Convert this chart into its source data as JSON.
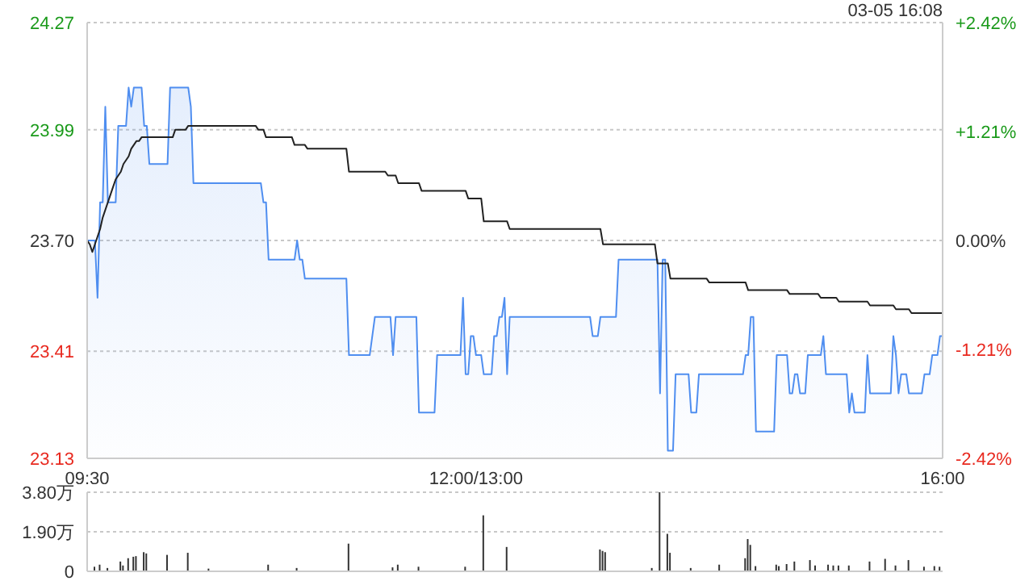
{
  "chart_data": [
    {
      "type": "area",
      "annotations": [
        "03-05 16:08"
      ],
      "grid": "y",
      "categories": [
        "09:30",
        null,
        null,
        null,
        null,
        null,
        null,
        null,
        null,
        null,
        null,
        null,
        null,
        null,
        null,
        null,
        null,
        null,
        null,
        null,
        null,
        null,
        null,
        null,
        null,
        null,
        null,
        null,
        null,
        null,
        null,
        null,
        null,
        null,
        null,
        null,
        null,
        null,
        null,
        null,
        null,
        null,
        null,
        null,
        null,
        null,
        null,
        null,
        null,
        null,
        null,
        null,
        null,
        null,
        null,
        null,
        null,
        null,
        null,
        null,
        null,
        null,
        null,
        null,
        null,
        null,
        null,
        null,
        null,
        null,
        null,
        null,
        null,
        null,
        null,
        null,
        null,
        null,
        null,
        null,
        null,
        null,
        null,
        null,
        null,
        null,
        null,
        null,
        null,
        null,
        null,
        null,
        null,
        null,
        null,
        null,
        null,
        null,
        null,
        null,
        null,
        null,
        null,
        null,
        null,
        null,
        null,
        null,
        null,
        null,
        null,
        null,
        null,
        null,
        null,
        null,
        null,
        null,
        null,
        null,
        null,
        null,
        null,
        null,
        null,
        null,
        null,
        null,
        null,
        null,
        null,
        null,
        null,
        null,
        null,
        null,
        null,
        null,
        null,
        null,
        null,
        null,
        null,
        null,
        null,
        null,
        null,
        null,
        null,
        null,
        "12:00/13:00",
        null,
        null,
        null,
        null,
        null,
        null,
        null,
        null,
        null,
        null,
        null,
        null,
        null,
        null,
        null,
        null,
        null,
        null,
        null,
        null,
        null,
        null,
        null,
        null,
        null,
        null,
        null,
        null,
        null,
        null,
        null,
        null,
        null,
        null,
        null,
        null,
        null,
        null,
        null,
        null,
        null,
        null,
        null,
        null,
        null,
        null,
        null,
        null,
        null,
        null,
        null,
        null,
        null,
        null,
        null,
        null,
        null,
        null,
        null,
        null,
        null,
        null,
        null,
        null,
        null,
        null,
        null,
        null,
        null,
        null,
        null,
        null,
        null,
        null,
        null,
        null,
        null,
        null,
        null,
        null,
        null,
        null,
        null,
        null,
        null,
        null,
        null,
        null,
        null,
        null,
        null,
        null,
        null,
        null,
        null,
        null,
        null,
        null,
        null,
        null,
        null,
        null,
        null,
        null,
        null,
        null,
        null,
        null,
        null,
        null,
        null,
        null,
        null,
        null,
        null,
        null,
        null,
        null,
        null,
        null,
        null,
        null,
        null,
        null,
        null,
        null,
        null,
        null,
        null,
        null,
        null,
        null,
        null,
        null,
        null,
        null,
        null,
        null,
        null,
        null,
        null,
        null,
        null,
        null,
        null,
        null,
        null,
        null,
        null,
        null,
        null,
        null,
        null,
        null,
        null,
        null,
        null,
        null,
        null,
        null,
        null,
        null,
        null,
        null,
        null,
        null,
        null,
        null,
        null,
        null,
        null,
        null,
        null,
        null,
        null,
        null,
        null,
        null,
        null,
        "16:00"
      ],
      "ylim": [
        23.13,
        24.27
      ],
      "yticks": [
        23.13,
        23.41,
        {
          "value": 23.7,
          "label": "23.70"
        },
        23.99,
        24.27
      ],
      "y2lim": [
        -2.42,
        2.42
      ],
      "y2ticks": [
        {
          "value": -2.42,
          "label": "-2.42%"
        },
        {
          "value": -1.21,
          "label": "-1.21%"
        },
        {
          "value": 0,
          "label": "0.00%"
        },
        {
          "value": 1.21,
          "label": "+1.21%"
        },
        {
          "value": 2.42,
          "label": "+2.42%"
        }
      ],
      "series": [
        {
          "color": "#4f8ef0",
          "values": [
            23.7,
            23.7,
            23.7,
            23.7,
            23.55,
            23.8,
            23.8,
            24.05,
            23.8,
            23.8,
            23.8,
            23.8,
            24.0,
            24.0,
            24.0,
            24.0,
            24.1,
            24.05,
            24.1,
            24.1,
            24.1,
            24.1,
            24.0,
            24.0,
            23.9,
            23.9,
            23.9,
            23.9,
            23.9,
            23.9,
            23.9,
            23.9,
            24.1,
            24.1,
            24.1,
            24.1,
            24.1,
            24.1,
            24.1,
            24.1,
            24.05,
            23.85,
            23.85,
            23.85,
            23.85,
            23.85,
            23.85,
            23.85,
            23.85,
            23.85,
            23.85,
            23.85,
            23.85,
            23.85,
            23.85,
            23.85,
            23.85,
            23.85,
            23.85,
            23.85,
            23.85,
            23.85,
            23.85,
            23.85,
            23.85,
            23.85,
            23.85,
            23.85,
            23.8,
            23.8,
            23.65,
            23.65,
            23.65,
            23.65,
            23.65,
            23.65,
            23.65,
            23.65,
            23.65,
            23.65,
            23.65,
            23.7,
            23.65,
            23.65,
            23.6,
            23.6,
            23.6,
            23.6,
            23.6,
            23.6,
            23.6,
            23.6,
            23.6,
            23.6,
            23.6,
            23.6,
            23.6,
            23.6,
            23.6,
            23.6,
            23.6,
            23.4,
            23.4,
            23.4,
            23.4,
            23.4,
            23.4,
            23.4,
            23.4,
            23.4,
            23.45,
            23.5,
            23.5,
            23.5,
            23.5,
            23.5,
            23.5,
            23.5,
            23.4,
            23.5,
            23.5,
            23.5,
            23.5,
            23.5,
            23.5,
            23.5,
            23.5,
            23.5,
            23.25,
            23.25,
            23.25,
            23.25,
            23.25,
            23.25,
            23.25,
            23.4,
            23.4,
            23.4,
            23.4,
            23.4,
            23.4,
            23.4,
            23.4,
            23.4,
            23.4,
            23.55,
            23.35,
            23.35,
            23.45,
            23.45,
            23.4,
            23.4,
            23.4,
            23.35,
            23.35,
            23.35,
            23.35,
            23.45,
            23.45,
            23.5,
            23.5,
            23.55,
            23.35,
            23.5,
            23.5,
            23.5,
            23.5,
            23.5,
            23.5,
            23.5,
            23.5,
            23.5,
            23.5,
            23.5,
            23.5,
            23.5,
            23.5,
            23.5,
            23.5,
            23.5,
            23.5,
            23.5,
            23.5,
            23.5,
            23.5,
            23.5,
            23.5,
            23.5,
            23.5,
            23.5,
            23.5,
            23.5,
            23.5,
            23.5,
            23.5,
            23.45,
            23.45,
            23.45,
            23.5,
            23.5,
            23.5,
            23.5,
            23.5,
            23.5,
            23.5,
            23.65,
            23.65,
            23.65,
            23.65,
            23.65,
            23.65,
            23.65,
            23.65,
            23.65,
            23.65,
            23.65,
            23.65,
            23.65,
            23.65,
            23.65,
            23.65,
            23.3,
            23.65,
            23.65,
            23.15,
            23.15,
            23.15,
            23.35,
            23.35,
            23.35,
            23.35,
            23.35,
            23.35,
            23.25,
            23.25,
            23.25,
            23.35,
            23.35,
            23.35,
            23.35,
            23.35,
            23.35,
            23.35,
            23.35,
            23.35,
            23.35,
            23.35,
            23.35,
            23.35,
            23.35,
            23.35,
            23.35,
            23.35,
            23.35,
            23.4,
            23.4,
            23.5,
            23.5,
            23.2,
            23.2,
            23.2,
            23.2,
            23.2,
            23.2,
            23.2,
            23.2,
            23.4,
            23.4,
            23.4,
            23.4,
            23.4,
            23.3,
            23.3,
            23.35,
            23.35,
            23.3,
            23.3,
            23.3,
            23.4,
            23.4,
            23.4,
            23.4,
            23.4,
            23.4,
            23.45,
            23.35,
            23.35,
            23.35,
            23.35,
            23.35,
            23.35,
            23.35,
            23.35,
            23.35,
            23.25,
            23.3,
            23.25,
            23.25,
            23.25,
            23.25,
            23.25,
            23.4,
            23.3,
            23.3,
            23.3,
            23.3,
            23.3,
            23.3,
            23.3,
            23.3,
            23.3,
            23.45,
            23.4,
            23.3,
            23.35,
            23.35,
            23.35,
            23.3,
            23.3,
            23.3,
            23.3,
            23.3,
            23.3,
            23.35,
            23.35,
            23.35,
            23.4,
            23.4,
            23.4,
            23.45,
            23.45
          ]
        },
        {
          "type": "line",
          "color": "#222222",
          "values": [
            23.7,
            23.69,
            23.67,
            23.69,
            23.71,
            23.73,
            23.76,
            23.78,
            23.8,
            23.82,
            23.84,
            23.86,
            23.87,
            23.88,
            23.9,
            23.91,
            23.92,
            23.94,
            23.95,
            23.96,
            23.96,
            23.97,
            23.97,
            23.97,
            23.97,
            23.97,
            23.97,
            23.97,
            23.97,
            23.97,
            23.97,
            23.97,
            23.97,
            23.97,
            23.99,
            23.99,
            23.99,
            23.99,
            23.99,
            24.0,
            24.0,
            24.0,
            24.0,
            24.0,
            24.0,
            24.0,
            24.0,
            24.0,
            24.0,
            24.0,
            24.0,
            24.0,
            24.0,
            24.0,
            24.0,
            24.0,
            24.0,
            24.0,
            24.0,
            24.0,
            24.0,
            24.0,
            24.0,
            24.0,
            24.0,
            24.0,
            23.99,
            23.99,
            23.99,
            23.97,
            23.97,
            23.97,
            23.97,
            23.97,
            23.97,
            23.97,
            23.97,
            23.97,
            23.97,
            23.97,
            23.95,
            23.95,
            23.95,
            23.95,
            23.95,
            23.94,
            23.94,
            23.94,
            23.94,
            23.94,
            23.94,
            23.94,
            23.94,
            23.94,
            23.94,
            23.94,
            23.94,
            23.94,
            23.94,
            23.94,
            23.94,
            23.88,
            23.88,
            23.88,
            23.88,
            23.88,
            23.88,
            23.88,
            23.88,
            23.88,
            23.88,
            23.88,
            23.88,
            23.88,
            23.88,
            23.88,
            23.87,
            23.87,
            23.87,
            23.87,
            23.85,
            23.85,
            23.85,
            23.85,
            23.85,
            23.85,
            23.85,
            23.85,
            23.85,
            23.83,
            23.83,
            23.83,
            23.83,
            23.83,
            23.83,
            23.83,
            23.83,
            23.83,
            23.83,
            23.83,
            23.83,
            23.83,
            23.83,
            23.83,
            23.83,
            23.83,
            23.83,
            23.81,
            23.81,
            23.81,
            23.81,
            23.81,
            23.81,
            23.75,
            23.75,
            23.75,
            23.75,
            23.75,
            23.75,
            23.75,
            23.75,
            23.75,
            23.75,
            23.73,
            23.73,
            23.73,
            23.73,
            23.73,
            23.73,
            23.73,
            23.73,
            23.73,
            23.73,
            23.73,
            23.73,
            23.73,
            23.73,
            23.73,
            23.73,
            23.73,
            23.73,
            23.73,
            23.73,
            23.73,
            23.73,
            23.73,
            23.73,
            23.73,
            23.73,
            23.73,
            23.73,
            23.73,
            23.73,
            23.73,
            23.73,
            23.73,
            23.73,
            23.73,
            23.73,
            23.69,
            23.69,
            23.69,
            23.69,
            23.69,
            23.69,
            23.69,
            23.69,
            23.69,
            23.69,
            23.69,
            23.69,
            23.69,
            23.69,
            23.69,
            23.69,
            23.69,
            23.69,
            23.69,
            23.69,
            23.69,
            23.64,
            23.64,
            23.64,
            23.64,
            23.64,
            23.6,
            23.6,
            23.6,
            23.6,
            23.6,
            23.6,
            23.6,
            23.6,
            23.6,
            23.6,
            23.6,
            23.6,
            23.6,
            23.6,
            23.6,
            23.59,
            23.59,
            23.59,
            23.59,
            23.59,
            23.59,
            23.59,
            23.59,
            23.59,
            23.59,
            23.59,
            23.59,
            23.59,
            23.59,
            23.59,
            23.57,
            23.57,
            23.57,
            23.57,
            23.57,
            23.57,
            23.57,
            23.57,
            23.57,
            23.57,
            23.57,
            23.57,
            23.57,
            23.57,
            23.57,
            23.57,
            23.56,
            23.56,
            23.56,
            23.56,
            23.56,
            23.56,
            23.56,
            23.56,
            23.56,
            23.56,
            23.56,
            23.56,
            23.55,
            23.55,
            23.55,
            23.55,
            23.55,
            23.55,
            23.55,
            23.54,
            23.54,
            23.54,
            23.54,
            23.54,
            23.54,
            23.54,
            23.54,
            23.54,
            23.54,
            23.54,
            23.54,
            23.53,
            23.53,
            23.53,
            23.53,
            23.53,
            23.53,
            23.53,
            23.53,
            23.53,
            23.53,
            23.52,
            23.52,
            23.52,
            23.52,
            23.52,
            23.52,
            23.51,
            23.51,
            23.51,
            23.51,
            23.51,
            23.51,
            23.51,
            23.51,
            23.51,
            23.51,
            23.51,
            23.51,
            23.51
          ]
        }
      ]
    },
    {
      "type": "bar",
      "grid": "y",
      "tick_labels": "y",
      "color": "#333333",
      "categories": [
        null,
        null,
        null,
        null,
        null,
        null,
        null,
        null,
        null,
        null,
        null,
        null,
        null,
        null,
        null,
        null,
        null,
        null,
        null,
        null,
        null,
        null,
        null,
        null,
        null,
        null,
        null,
        null,
        null,
        null,
        null,
        null,
        null,
        null,
        null,
        null,
        null,
        null,
        null,
        null,
        null,
        null,
        null,
        null,
        null,
        null,
        null,
        null,
        null,
        null,
        null,
        null,
        null,
        null,
        null,
        null,
        null,
        null,
        null,
        null,
        null,
        null,
        null,
        null,
        null,
        null,
        null,
        null,
        null,
        null,
        null,
        null,
        null,
        null,
        null,
        null,
        null,
        null,
        null,
        null,
        null,
        null,
        null,
        null,
        null,
        null,
        null,
        null,
        null,
        null,
        null,
        null,
        null,
        null,
        null,
        null,
        null,
        null,
        null,
        null,
        null,
        null,
        null,
        null,
        null,
        null,
        null,
        null,
        null,
        null,
        null,
        null,
        null,
        null,
        null,
        null,
        null,
        null,
        null,
        null,
        null,
        null,
        null,
        null,
        null,
        null,
        null,
        null,
        null,
        null,
        null,
        null,
        null,
        null,
        null,
        null,
        null,
        null,
        null,
        null,
        null,
        null,
        null,
        null,
        null,
        null,
        null,
        null,
        null,
        null,
        null,
        null,
        null,
        null,
        null,
        null,
        null,
        null,
        null,
        null,
        null,
        null,
        null,
        null,
        null,
        null,
        null,
        null,
        null,
        null,
        null,
        null,
        null,
        null,
        null,
        null,
        null,
        null,
        null,
        null,
        null,
        null,
        null,
        null,
        null,
        null,
        null,
        null,
        null,
        null,
        null,
        null,
        null,
        null,
        null,
        null,
        null,
        null,
        null,
        null,
        null,
        null,
        null,
        null,
        null,
        null,
        null,
        null,
        null,
        null,
        null,
        null,
        null,
        null,
        null,
        null,
        null,
        null,
        null,
        null,
        null,
        null,
        null,
        null,
        null,
        null,
        null,
        null,
        null,
        null,
        null,
        null,
        null,
        null,
        null,
        null,
        null,
        null,
        null,
        null,
        null,
        null,
        null,
        null,
        null,
        null,
        null,
        null,
        null,
        null,
        null,
        null,
        null,
        null,
        null,
        null,
        null,
        null,
        null,
        null,
        null,
        null,
        null,
        null,
        null,
        null,
        null,
        null,
        null,
        null,
        null,
        null,
        null,
        null,
        null,
        null,
        null,
        null,
        null,
        null,
        null,
        null,
        null,
        null,
        null,
        null,
        null,
        null,
        null,
        null,
        null,
        null,
        null,
        null,
        null,
        null,
        null,
        null,
        null,
        null,
        null,
        null,
        null,
        null,
        null,
        null,
        null,
        null,
        null,
        null,
        null,
        null,
        null,
        null,
        null,
        null,
        null,
        null,
        null,
        null,
        null,
        null,
        null,
        null,
        null,
        null,
        null,
        null,
        null,
        null,
        null
      ],
      "ylim": [
        0,
        3.8
      ],
      "yticks": [
        0,
        {
          "value": 1.9,
          "label": "1.90万"
        },
        {
          "value": 3.8,
          "label": "3.80万"
        }
      ],
      "values": [
        null,
        null,
        null,
        0.22,
        null,
        0.32,
        null,
        null,
        0.16,
        null,
        null,
        null,
        null,
        0.47,
        0.28,
        null,
        0.63,
        null,
        0.7,
        0.73,
        null,
        null,
        0.92,
        0.86,
        null,
        null,
        null,
        null,
        null,
        null,
        null,
        0.79,
        null,
        null,
        null,
        null,
        null,
        null,
        null,
        0.89,
        null,
        null,
        null,
        null,
        null,
        null,
        null,
        0.13,
        null,
        null,
        null,
        null,
        null,
        null,
        null,
        null,
        null,
        null,
        null,
        null,
        null,
        null,
        null,
        null,
        null,
        null,
        null,
        null,
        null,
        null,
        0.32,
        null,
        null,
        null,
        null,
        null,
        null,
        null,
        null,
        null,
        null,
        0.16,
        null,
        null,
        null,
        null,
        null,
        null,
        null,
        null,
        null,
        null,
        null,
        null,
        null,
        null,
        null,
        null,
        null,
        null,
        null,
        1.33,
        null,
        null,
        null,
        null,
        null,
        null,
        null,
        null,
        null,
        null,
        null,
        null,
        null,
        null,
        null,
        null,
        0.19,
        null,
        0.32,
        null,
        null,
        null,
        null,
        null,
        null,
        null,
        0.22,
        null,
        null,
        null,
        null,
        null,
        null,
        null,
        null,
        null,
        null,
        null,
        null,
        null,
        null,
        null,
        null,
        null,
        0.22,
        null,
        null,
        null,
        null,
        null,
        null,
        2.69,
        null,
        null,
        null,
        null,
        null,
        null,
        null,
        null,
        1.17,
        null,
        null,
        null,
        null,
        null,
        null,
        null,
        null,
        null,
        null,
        null,
        null,
        null,
        null,
        null,
        null,
        null,
        null,
        null,
        null,
        null,
        null,
        null,
        null,
        null,
        null,
        null,
        null,
        null,
        null,
        null,
        null,
        null,
        null,
        null,
        1.05,
        0.98,
        0.92,
        null,
        null,
        null,
        null,
        null,
        null,
        null,
        null,
        null,
        null,
        null,
        null,
        null,
        null,
        null,
        null,
        null,
        0.16,
        null,
        null,
        3.8,
        null,
        null,
        1.8,
        0.89,
        null,
        null,
        null,
        null,
        null,
        null,
        null,
        0.16,
        null,
        null,
        null,
        null,
        null,
        null,
        null,
        null,
        null,
        null,
        0.32,
        null,
        null,
        null,
        null,
        null,
        null,
        null,
        null,
        null,
        0.63,
        1.55,
        1.27,
        null,
        0.25,
        null,
        null,
        null,
        null,
        null,
        null,
        null,
        0.32,
        0.25,
        null,
        null,
        0.35,
        null,
        null,
        0.47,
        null,
        null,
        null,
        null,
        null,
        0.54,
        null,
        0.28,
        null,
        null,
        null,
        null,
        0.32,
        null,
        0.28,
        null,
        0.28,
        null,
        null,
        null,
        0.28,
        null,
        null,
        null,
        null,
        null,
        null,
        null,
        0.47,
        null,
        null,
        null,
        null,
        null,
        0.6,
        null,
        null,
        null,
        0.28,
        null,
        null,
        null,
        null,
        0.54,
        null,
        null,
        null,
        null,
        null,
        0.22,
        null,
        null,
        null,
        0.25,
        null,
        0.22,
        null
      ]
    }
  ]
}
